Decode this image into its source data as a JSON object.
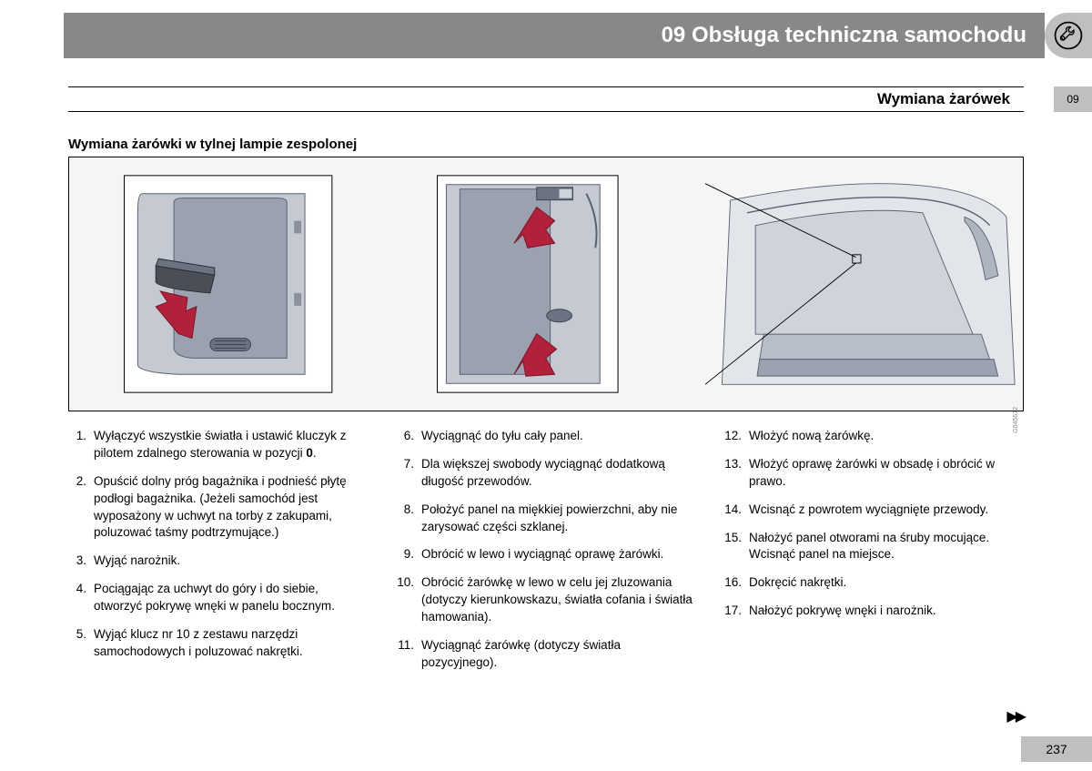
{
  "header": {
    "chapter_number": "09",
    "chapter_title": "Obsługa techniczna samochodu"
  },
  "section": {
    "title": "Wymiana żarówek",
    "tab_number": "09"
  },
  "subtitle": "Wymiana żarówki w tylnej lampie zespolonej",
  "illustration": {
    "panels": 3,
    "arrow_color": "#b3203c",
    "background_color": "#dcdfe3",
    "line_color": "#5a6070",
    "credit": "G045612"
  },
  "steps": {
    "col1": [
      {
        "n": "1.",
        "t": "Wyłączyć wszystkie światła i ustawić kluczyk z pilotem zdalnego sterowania w pozycji ",
        "bold": "0",
        "after": "."
      },
      {
        "n": "2.",
        "t": "Opuścić dolny próg bagażnika i podnieść płytę podłogi bagażnika. (Jeżeli samochód jest wyposażony w uchwyt na torby z zakupami, poluzować taśmy podtrzymujące.)"
      },
      {
        "n": "3.",
        "t": "Wyjąć narożnik."
      },
      {
        "n": "4.",
        "t": "Pociągając za uchwyt do góry i do siebie, otworzyć pokrywę wnęki w panelu bocznym."
      },
      {
        "n": "5.",
        "t": "Wyjąć klucz nr 10 z zestawu narzędzi samochodowych i poluzować nakrętki."
      }
    ],
    "col2": [
      {
        "n": "6.",
        "t": "Wyciągnąć do tyłu cały panel."
      },
      {
        "n": "7.",
        "t": "Dla większej swobody wyciągnąć dodatkową długość przewodów."
      },
      {
        "n": "8.",
        "t": "Położyć panel na miękkiej powierzchni, aby nie zarysować części szklanej."
      },
      {
        "n": "9.",
        "t": "Obrócić w lewo i wyciągnąć oprawę żarówki."
      },
      {
        "n": "10.",
        "t": "Obrócić żarówkę w lewo w celu jej zluzowania (dotyczy kierunkowskazu, światła cofania i światła hamowania)."
      },
      {
        "n": "11.",
        "t": "Wyciągnąć żarówkę (dotyczy światła pozycyjnego)."
      }
    ],
    "col3": [
      {
        "n": "12.",
        "t": "Włożyć nową żarówkę."
      },
      {
        "n": "13.",
        "t": "Włożyć oprawę żarówki w obsadę i obrócić w prawo."
      },
      {
        "n": "14.",
        "t": "Wcisnąć z powrotem wyciągnięte przewody."
      },
      {
        "n": "15.",
        "t": "Nałożyć panel otworami na śruby mocujące. Wcisnąć panel na miejsce."
      },
      {
        "n": "16.",
        "t": "Dokręcić nakrętki."
      },
      {
        "n": "17.",
        "t": "Nałożyć pokrywę wnęki i narożnik."
      }
    ]
  },
  "page_number": "237",
  "continue_marker": "▶▶",
  "colors": {
    "header_bg": "#888888",
    "badge_bg": "#bfbfbf",
    "text": "#000000",
    "header_text": "#ffffff"
  }
}
